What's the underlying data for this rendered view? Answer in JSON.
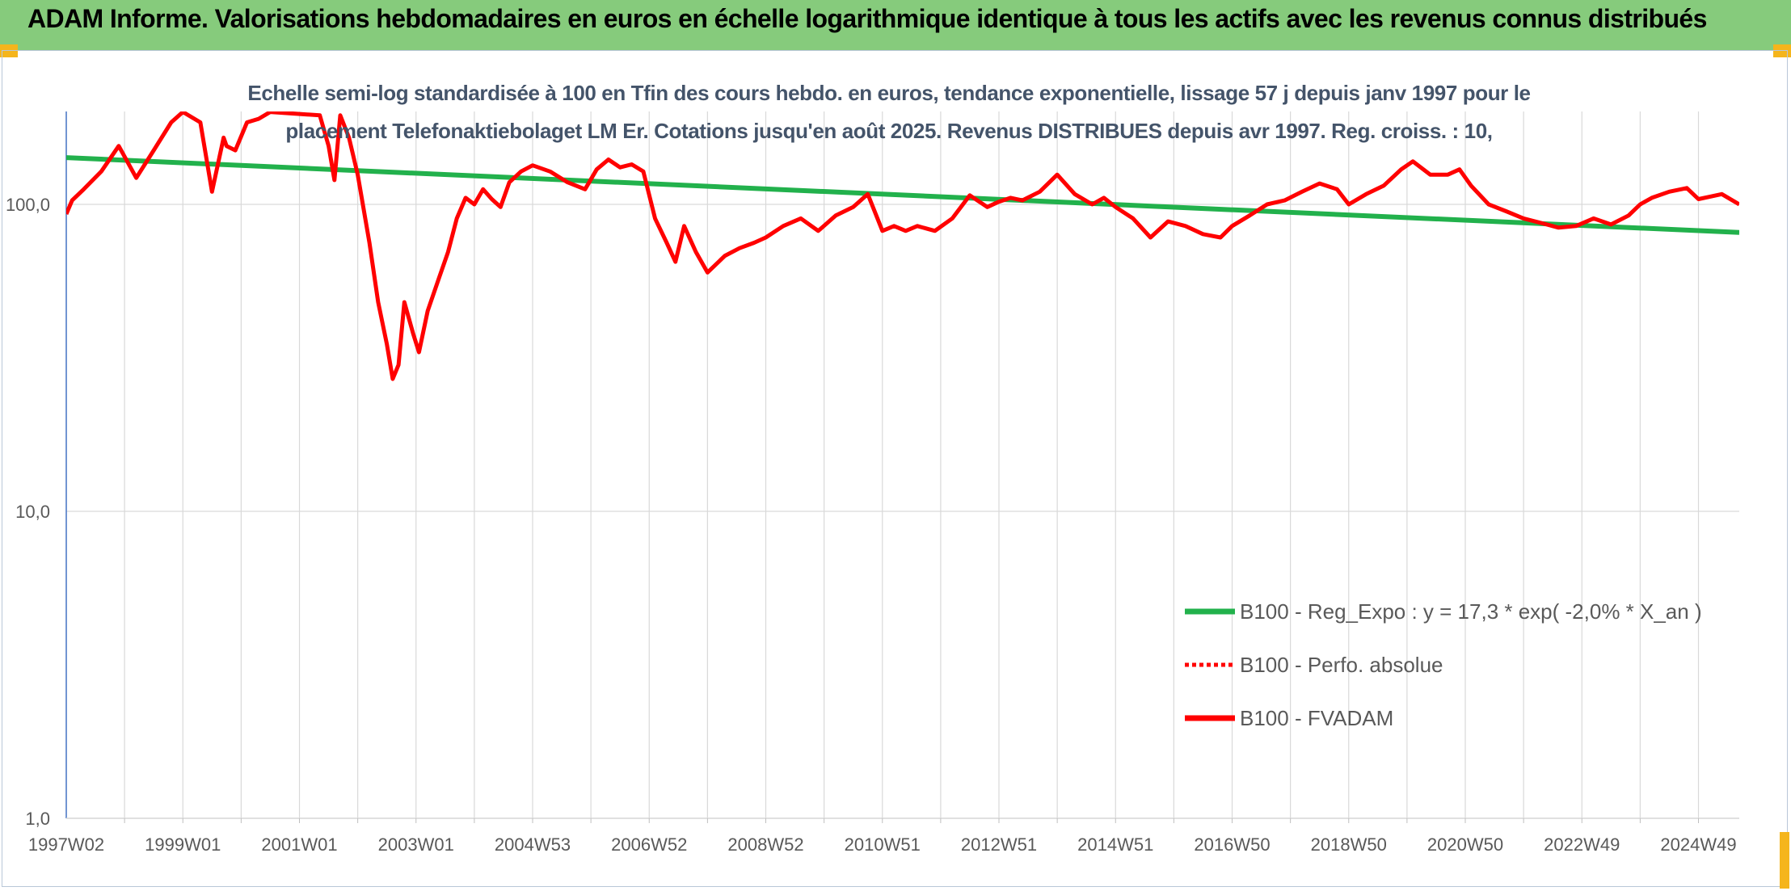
{
  "header": {
    "title": "ADAM Informe. Valorisations hebdomadaires en euros en échelle logarithmique identique à tous les actifs avec les revenus connus distribués"
  },
  "chart_data": {
    "type": "line",
    "title_line1": "Echelle semi-log standardisée à 100 en Tfin des cours hebdo. en euros, tendance exponentielle, lissage 57 j depuis janv 1997 pour le",
    "title_line2": "placement Telefonaktiebolaget LM Er. Cotations jusqu'en août 2025. Revenus DISTRIBUES depuis avr 1997. Reg. croiss. : 10,",
    "y_scale": "log",
    "ylim": [
      1,
      200
    ],
    "y_ticks": [
      {
        "value": 1,
        "label": "1,0"
      },
      {
        "value": 10,
        "label": "10,0"
      },
      {
        "value": 100,
        "label": "100,0"
      }
    ],
    "xlim": [
      1997.0,
      2025.7
    ],
    "x_ticks": [
      "1997W02",
      "1999W01",
      "2001W01",
      "2003W01",
      "2004W53",
      "2006W52",
      "2008W52",
      "2010W51",
      "2012W51",
      "2014W51",
      "2016W50",
      "2018W50",
      "2020W50",
      "2022W49",
      "2024W49"
    ],
    "x_tick_years": [
      1997.0,
      1999.0,
      2001.0,
      2003.0,
      2005.0,
      2007.0,
      2009.0,
      2011.0,
      2013.0,
      2015.0,
      2017.0,
      2019.0,
      2021.0,
      2023.0,
      2025.0
    ],
    "grid": "vertical",
    "legend_position": "bottom-right",
    "colors": {
      "trend": "#22b14c",
      "perf": "#ff0000",
      "fvadam": "#ff0000",
      "title": "#44546a",
      "banner": "#86cb7c"
    },
    "legend": [
      {
        "label": "B100 - Reg_Expo : y = 17,3 * exp( -2,0% *  X_an )",
        "style": "solid-green"
      },
      {
        "label": "B100 - Perfo. absolue",
        "style": "dotted-red"
      },
      {
        "label": "B100 - FVADAM",
        "style": "solid-red"
      }
    ],
    "series": [
      {
        "name": "B100 - Reg_Expo : y = 17,3 * exp( -2,0% *  X_an )",
        "x": [
          1997.0,
          2025.7
        ],
        "y": [
          142,
          81
        ]
      },
      {
        "name": "B100 - FVADAM",
        "x": [
          1997.0,
          1997.1,
          1997.3,
          1997.6,
          1997.9,
          1998.2,
          1998.5,
          1998.8,
          1999.0,
          1999.3,
          1999.5,
          1999.7,
          1999.75,
          1999.9,
          2000.1,
          2000.3,
          2000.5,
          2001.35,
          2001.5,
          2001.6,
          2001.7,
          2001.85,
          2002.0,
          2002.2,
          2002.35,
          2002.5,
          2002.6,
          2002.7,
          2002.8,
          2002.95,
          2003.05,
          2003.2,
          2003.4,
          2003.55,
          2003.7,
          2003.85,
          2004.0,
          2004.15,
          2004.3,
          2004.45,
          2004.6,
          2004.8,
          2005.0,
          2005.3,
          2005.6,
          2005.9,
          2006.1,
          2006.3,
          2006.5,
          2006.7,
          2006.9,
          2007.1,
          2007.3,
          2007.45,
          2007.6,
          2007.8,
          2008.0,
          2008.3,
          2008.55,
          2008.8,
          2009.0,
          2009.3,
          2009.6,
          2009.9,
          2010.2,
          2010.5,
          2010.75,
          2011.0,
          2011.2,
          2011.4,
          2011.6,
          2011.9,
          2012.2,
          2012.5,
          2012.8,
          2013.0,
          2013.2,
          2013.4,
          2013.7,
          2014.0,
          2014.3,
          2014.6,
          2014.8,
          2015.0,
          2015.3,
          2015.6,
          2015.9,
          2016.2,
          2016.5,
          2016.8,
          2017.0,
          2017.3,
          2017.6,
          2017.9,
          2018.2,
          2018.5,
          2018.8,
          2019.0,
          2019.3,
          2019.6,
          2019.9,
          2020.1,
          2020.4,
          2020.7,
          2020.9,
          2021.1,
          2021.4,
          2021.7,
          2022.0,
          2022.3,
          2022.6,
          2022.9,
          2023.2,
          2023.5,
          2023.8,
          2024.0,
          2024.2,
          2024.5,
          2024.8,
          2025.0,
          2025.2,
          2025.4,
          2025.7
        ],
        "y": [
          93,
          103,
          112,
          128,
          155,
          122,
          150,
          185,
          200,
          185,
          110,
          165,
          155,
          150,
          185,
          190,
          200,
          195,
          155,
          120,
          195,
          165,
          125,
          75,
          48,
          35,
          27,
          30,
          48,
          38,
          33,
          45,
          58,
          70,
          90,
          105,
          100,
          112,
          104,
          98,
          118,
          128,
          134,
          128,
          118,
          112,
          130,
          140,
          132,
          135,
          128,
          90,
          75,
          65,
          85,
          70,
          60,
          68,
          72,
          75,
          78,
          85,
          90,
          82,
          92,
          98,
          108,
          82,
          85,
          82,
          85,
          82,
          90,
          107,
          98,
          102,
          105,
          103,
          110,
          125,
          108,
          100,
          105,
          98,
          90,
          78,
          88,
          85,
          80,
          78,
          85,
          92,
          100,
          103,
          110,
          117,
          112,
          100,
          108,
          115,
          130,
          138,
          125,
          125,
          130,
          115,
          100,
          95,
          90,
          87,
          84,
          85,
          90,
          86,
          92,
          100,
          105,
          110,
          113,
          104,
          106,
          108,
          100
        ]
      }
    ]
  }
}
